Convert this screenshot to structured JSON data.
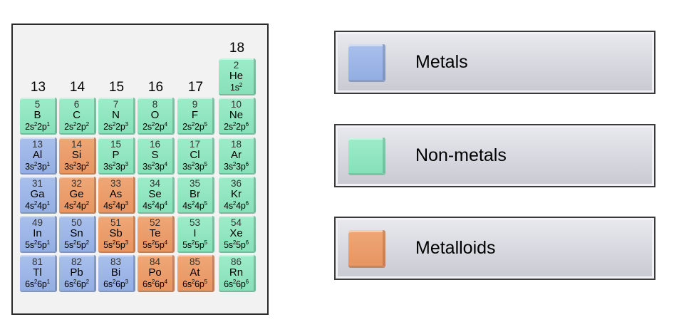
{
  "colors": {
    "metal": "#93aee3",
    "nonmetal": "#86e0b8",
    "metalloid": "#e79562"
  },
  "groups": [
    "13",
    "14",
    "15",
    "16",
    "17",
    "18"
  ],
  "helium": {
    "z": "2",
    "sym": "He",
    "cfg": "1s",
    "exp": "2",
    "type": "nonmetal"
  },
  "rows": [
    [
      {
        "z": "5",
        "sym": "B",
        "cfg": "2s²2p¹",
        "type": "nonmetal"
      },
      {
        "z": "6",
        "sym": "C",
        "cfg": "2s²2p²",
        "type": "nonmetal"
      },
      {
        "z": "7",
        "sym": "N",
        "cfg": "2s²2p³",
        "type": "nonmetal"
      },
      {
        "z": "8",
        "sym": "O",
        "cfg": "2s²2p⁴",
        "type": "nonmetal"
      },
      {
        "z": "9",
        "sym": "F",
        "cfg": "2s²2p⁵",
        "type": "nonmetal"
      },
      {
        "z": "10",
        "sym": "Ne",
        "cfg": "2s²2p⁶",
        "type": "nonmetal"
      }
    ],
    [
      {
        "z": "13",
        "sym": "Al",
        "cfg": "3s²3p¹",
        "type": "metal"
      },
      {
        "z": "14",
        "sym": "Si",
        "cfg": "3s²3p²",
        "type": "metalloid"
      },
      {
        "z": "15",
        "sym": "P",
        "cfg": "3s²3p³",
        "type": "nonmetal"
      },
      {
        "z": "16",
        "sym": "S",
        "cfg": "3s²3p⁴",
        "type": "nonmetal"
      },
      {
        "z": "17",
        "sym": "Cl",
        "cfg": "3s²3p⁵",
        "type": "nonmetal"
      },
      {
        "z": "18",
        "sym": "Ar",
        "cfg": "3s²3p⁶",
        "type": "nonmetal"
      }
    ],
    [
      {
        "z": "31",
        "sym": "Ga",
        "cfg": "4s²4p¹",
        "type": "metal"
      },
      {
        "z": "32",
        "sym": "Ge",
        "cfg": "4s²4p²",
        "type": "metalloid"
      },
      {
        "z": "33",
        "sym": "As",
        "cfg": "4s²4p³",
        "type": "metalloid"
      },
      {
        "z": "34",
        "sym": "Se",
        "cfg": "4s²4p⁴",
        "type": "nonmetal"
      },
      {
        "z": "35",
        "sym": "Br",
        "cfg": "4s²4p⁵",
        "type": "nonmetal"
      },
      {
        "z": "36",
        "sym": "Kr",
        "cfg": "4s²4p⁶",
        "type": "nonmetal"
      }
    ],
    [
      {
        "z": "49",
        "sym": "In",
        "cfg": "5s²5p¹",
        "type": "metal"
      },
      {
        "z": "50",
        "sym": "Sn",
        "cfg": "5s²5p²",
        "type": "metal"
      },
      {
        "z": "51",
        "sym": "Sb",
        "cfg": "5s²5p³",
        "type": "metalloid"
      },
      {
        "z": "52",
        "sym": "Te",
        "cfg": "5s²5p⁴",
        "type": "metalloid"
      },
      {
        "z": "53",
        "sym": "I",
        "cfg": "5s²5p⁵",
        "type": "nonmetal"
      },
      {
        "z": "54",
        "sym": "Xe",
        "cfg": "5s²5p⁶",
        "type": "nonmetal"
      }
    ],
    [
      {
        "z": "81",
        "sym": "Tl",
        "cfg": "6s²6p¹",
        "type": "metal"
      },
      {
        "z": "82",
        "sym": "Pb",
        "cfg": "6s²6p²",
        "type": "metal"
      },
      {
        "z": "83",
        "sym": "Bi",
        "cfg": "6s²6p³",
        "type": "metal"
      },
      {
        "z": "84",
        "sym": "Po",
        "cfg": "6s²6p⁴",
        "type": "metalloid"
      },
      {
        "z": "85",
        "sym": "At",
        "cfg": "6s²6p⁵",
        "type": "metalloid"
      },
      {
        "z": "86",
        "sym": "Rn",
        "cfg": "6s²6p⁶",
        "type": "nonmetal"
      }
    ]
  ],
  "legend": [
    {
      "label": "Metals",
      "type": "metal"
    },
    {
      "label": "Non-metals",
      "type": "nonmetal"
    },
    {
      "label": "Metalloids",
      "type": "metalloid"
    }
  ]
}
